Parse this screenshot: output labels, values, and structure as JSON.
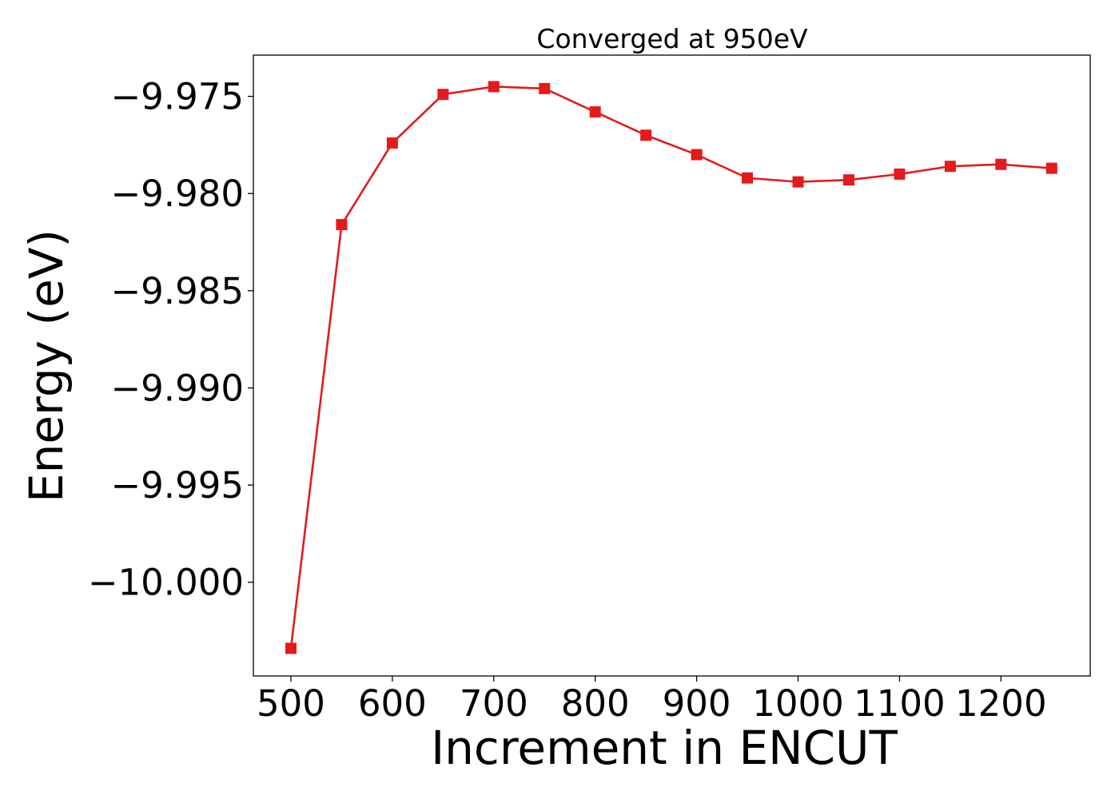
{
  "chart_data": {
    "type": "line",
    "title": "Converged at 950eV",
    "xlabel": "Increment in ENCUT",
    "ylabel": "Energy (eV)",
    "x": [
      500,
      550,
      600,
      650,
      700,
      750,
      800,
      850,
      900,
      950,
      1000,
      1050,
      1100,
      1150,
      1200,
      1250
    ],
    "series": [
      {
        "values": [
          -10.0034,
          -9.9816,
          -9.9774,
          -9.9749,
          -9.9745,
          -9.9746,
          -9.9758,
          -9.977,
          -9.978,
          -9.9792,
          -9.9794,
          -9.9793,
          -9.979,
          -9.9786,
          -9.9785,
          -9.9787
        ],
        "color": "#e41a1c",
        "marker": "square"
      }
    ],
    "xlim": [
      463,
      1288
    ],
    "ylim": [
      -10.00482,
      -9.97288
    ],
    "xticks": [
      500,
      600,
      700,
      800,
      900,
      1000,
      1100,
      1200
    ],
    "xtick_labels": [
      "500",
      "600",
      "700",
      "800",
      "900",
      "1000",
      "1100",
      "1200"
    ],
    "yticks": [
      -9.975,
      -9.98,
      -9.985,
      -9.99,
      -9.995,
      -10.0
    ],
    "ytick_labels": [
      "−9.975",
      "−9.980",
      "−9.985",
      "−9.990",
      "−9.995",
      "−10.000"
    ],
    "grid": false,
    "legend": false
  }
}
